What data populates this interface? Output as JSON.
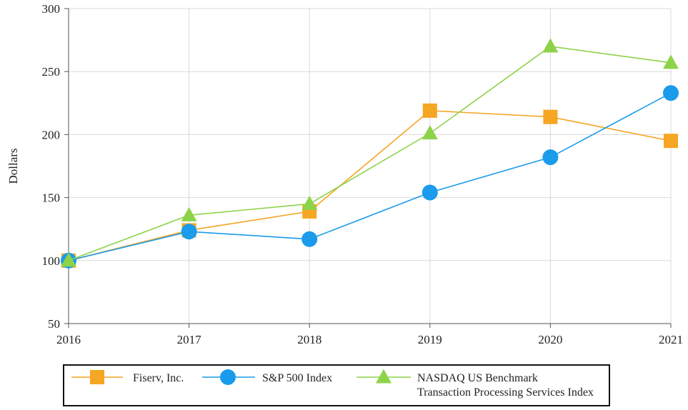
{
  "chart_data": {
    "type": "line",
    "title": "",
    "xlabel": "",
    "ylabel": "Dollars",
    "x": [
      "2016",
      "2017",
      "2018",
      "2019",
      "2020",
      "2021"
    ],
    "ylim": [
      50,
      300
    ],
    "yticks": [
      50,
      100,
      150,
      200,
      250,
      300
    ],
    "grid": true,
    "legend_position": "bottom",
    "series": [
      {
        "name": "Fiserv, Inc.",
        "values": [
          100,
          124,
          139,
          219,
          214,
          195
        ],
        "color": "#F5A623",
        "marker": "square"
      },
      {
        "name": "S&P 500 Index",
        "values": [
          100,
          123,
          117,
          154,
          182,
          233
        ],
        "color": "#1A9BEB",
        "marker": "circle"
      },
      {
        "name_lines": [
          "NASDAQ US Benchmark",
          "Transaction Processing Services Index"
        ],
        "values": [
          100,
          136,
          145,
          201,
          270,
          257
        ],
        "color": "#8DD34A",
        "marker": "triangle"
      }
    ]
  }
}
